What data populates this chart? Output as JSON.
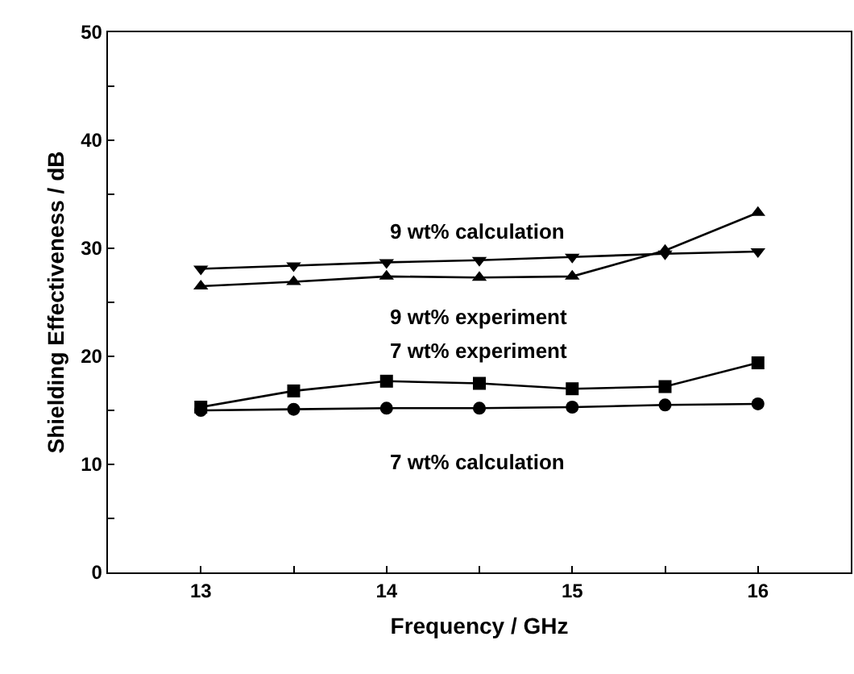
{
  "chart_data": {
    "type": "line",
    "xlabel": "Frequency / GHz",
    "ylabel": "Shielding Effectiveness / dB",
    "x": [
      13,
      13.5,
      14,
      14.5,
      15,
      15.5,
      16
    ],
    "xlim": [
      12.5,
      16.5
    ],
    "ylim": [
      0,
      50
    ],
    "xticks": [
      13,
      {
        "value": 13.5,
        "label": null
      },
      14,
      {
        "value": 14.5,
        "label": null
      },
      15,
      {
        "value": 15.5,
        "label": null
      },
      16
    ],
    "yticks": [
      0,
      {
        "value": 5,
        "label": null
      },
      10,
      {
        "value": 15,
        "label": null
      },
      20,
      {
        "value": 25,
        "label": null
      },
      30,
      {
        "value": 35,
        "label": null
      },
      40,
      {
        "value": 45,
        "label": null
      },
      50
    ],
    "legend": false,
    "line_style": "solid",
    "series": [
      {
        "name": "9 wt% calculation",
        "color": "#000000",
        "marker": "triangle-down",
        "values": [
          28.1,
          28.4,
          28.7,
          28.9,
          29.2,
          29.5,
          29.7
        ]
      },
      {
        "name": "9 wt% experiment",
        "color": "#000000",
        "marker": "triangle",
        "values": [
          26.5,
          26.9,
          27.4,
          27.3,
          27.4,
          29.8,
          33.3
        ]
      },
      {
        "name": "7 wt% experiment",
        "color": "#000000",
        "marker": "square",
        "values": [
          15.3,
          16.8,
          17.7,
          17.5,
          17.0,
          17.2,
          19.4
        ]
      },
      {
        "name": "7 wt% calculation",
        "color": "#000000",
        "marker": "circle",
        "values": [
          15.0,
          15.1,
          15.2,
          15.2,
          15.3,
          15.5,
          15.6
        ]
      }
    ]
  }
}
